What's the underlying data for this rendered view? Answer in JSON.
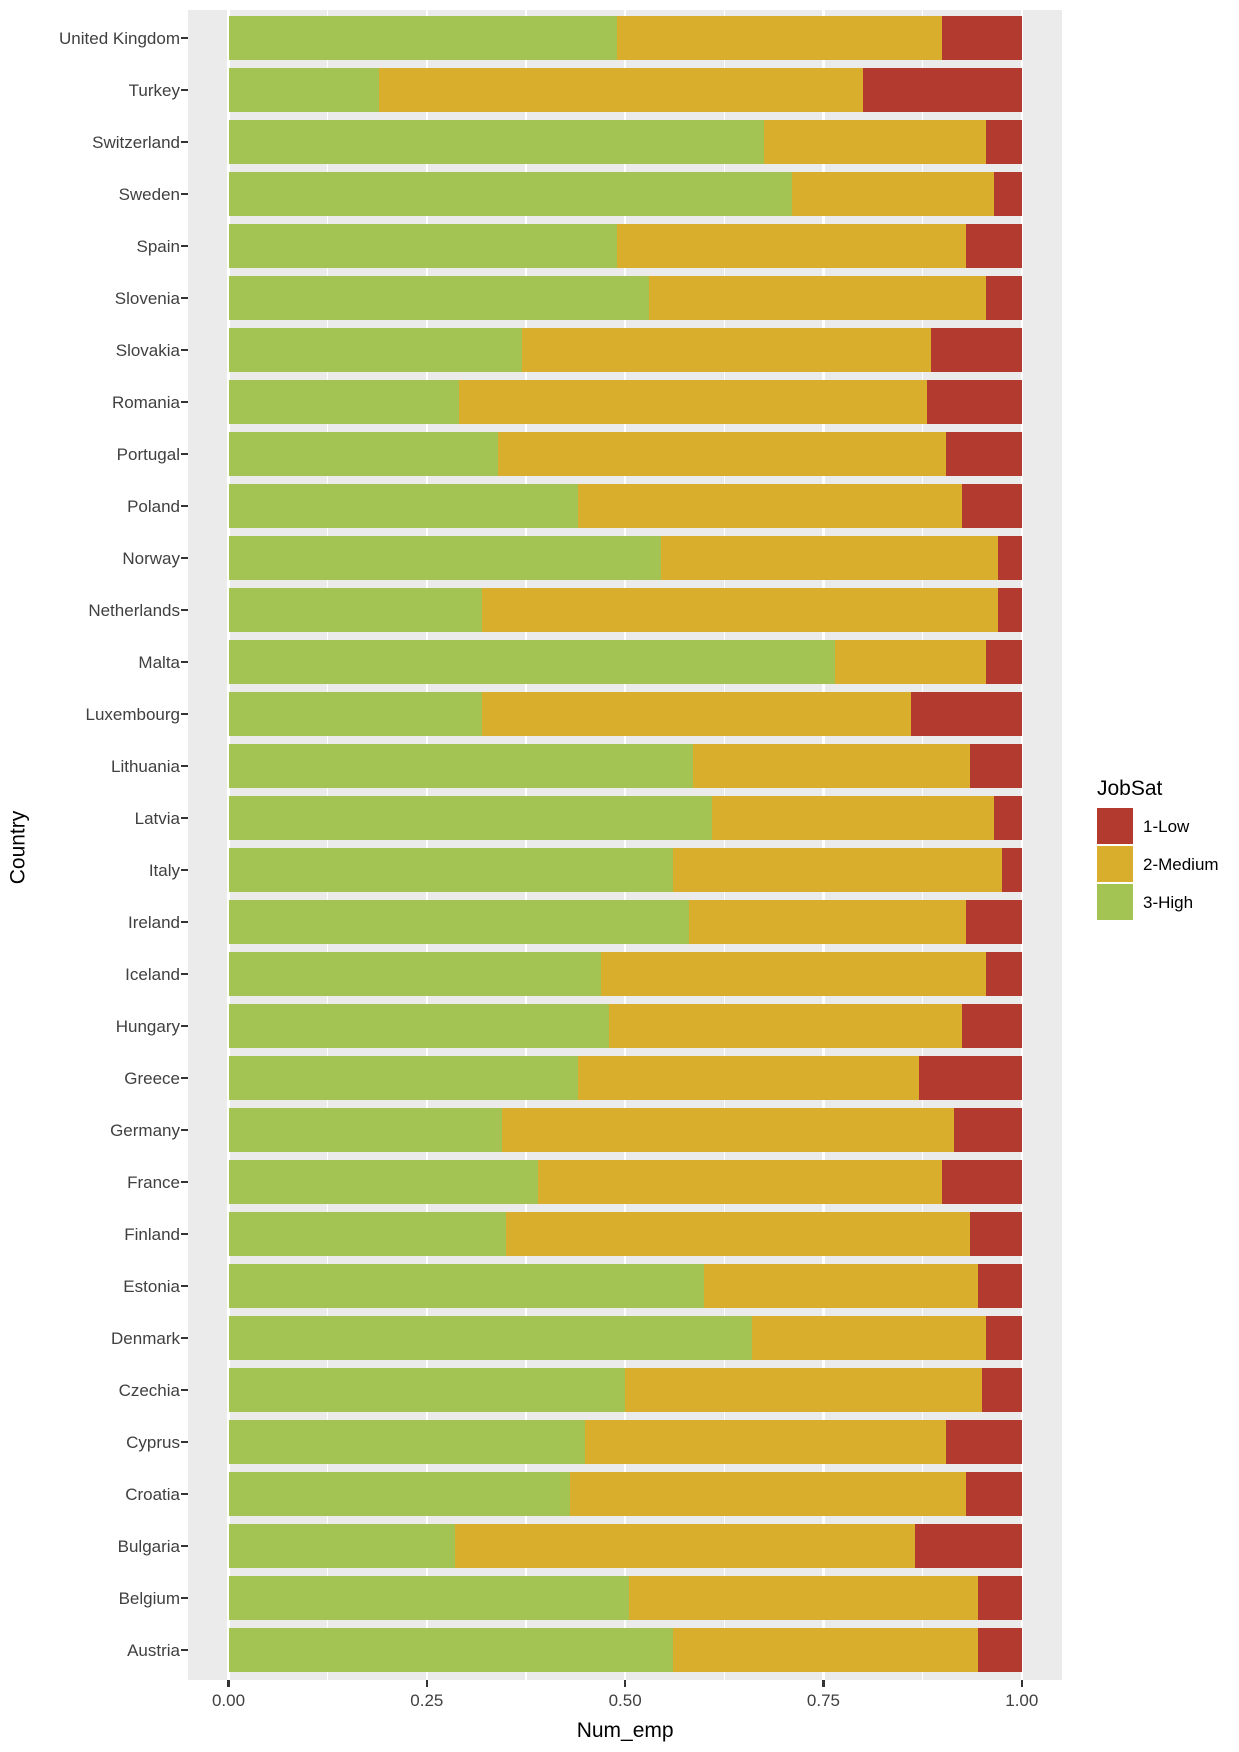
{
  "chart_data": {
    "type": "bar",
    "orientation": "horizontal",
    "stacked": true,
    "normalized": true,
    "title": "",
    "xlabel": "Num_emp",
    "ylabel": "Country",
    "xlim": [
      0,
      1
    ],
    "x_ticks": [
      "0.00",
      "0.25",
      "0.50",
      "0.75",
      "1.00"
    ],
    "x_tick_values": [
      0,
      0.25,
      0.5,
      0.75,
      1
    ],
    "x_minor_values": [
      0.125,
      0.375,
      0.625,
      0.875
    ],
    "grid": true,
    "legend": {
      "title": "JobSat",
      "position": "right",
      "entries": [
        {
          "label": "1-Low",
          "color": "#b33a2e"
        },
        {
          "label": "2-Medium",
          "color": "#d9ae2c"
        },
        {
          "label": "3-High",
          "color": "#a3c353"
        }
      ]
    },
    "categories": [
      "United Kingdom",
      "Turkey",
      "Switzerland",
      "Sweden",
      "Spain",
      "Slovenia",
      "Slovakia",
      "Romania",
      "Portugal",
      "Poland",
      "Norway",
      "Netherlands",
      "Malta",
      "Luxembourg",
      "Lithuania",
      "Latvia",
      "Italy",
      "Ireland",
      "Iceland",
      "Hungary",
      "Greece",
      "Germany",
      "France",
      "Finland",
      "Estonia",
      "Denmark",
      "Czechia",
      "Cyprus",
      "Croatia",
      "Bulgaria",
      "Belgium",
      "Austria"
    ],
    "series": [
      {
        "name": "3-High",
        "color": "#a3c353",
        "values": [
          0.49,
          0.19,
          0.675,
          0.71,
          0.49,
          0.53,
          0.37,
          0.29,
          0.34,
          0.44,
          0.545,
          0.32,
          0.765,
          0.32,
          0.585,
          0.61,
          0.56,
          0.58,
          0.47,
          0.48,
          0.44,
          0.345,
          0.39,
          0.35,
          0.6,
          0.66,
          0.5,
          0.45,
          0.43,
          0.285,
          0.505,
          0.56
        ]
      },
      {
        "name": "2-Medium",
        "color": "#d9ae2c",
        "values": [
          0.41,
          0.61,
          0.28,
          0.255,
          0.44,
          0.425,
          0.515,
          0.59,
          0.565,
          0.485,
          0.425,
          0.65,
          0.19,
          0.54,
          0.35,
          0.355,
          0.415,
          0.35,
          0.485,
          0.445,
          0.43,
          0.57,
          0.51,
          0.585,
          0.345,
          0.295,
          0.45,
          0.455,
          0.5,
          0.58,
          0.44,
          0.385
        ]
      },
      {
        "name": "1-Low",
        "color": "#b33a2e",
        "values": [
          0.1,
          0.2,
          0.045,
          0.035,
          0.07,
          0.045,
          0.115,
          0.12,
          0.095,
          0.075,
          0.03,
          0.03,
          0.045,
          0.14,
          0.065,
          0.035,
          0.025,
          0.07,
          0.045,
          0.075,
          0.13,
          0.085,
          0.1,
          0.065,
          0.055,
          0.045,
          0.05,
          0.095,
          0.07,
          0.135,
          0.055,
          0.055
        ]
      }
    ]
  },
  "style": {
    "panel_bg": "#ebebeb",
    "grid_color": "#ffffff",
    "tick_label_color": "#404040",
    "title_color": "#000000"
  }
}
